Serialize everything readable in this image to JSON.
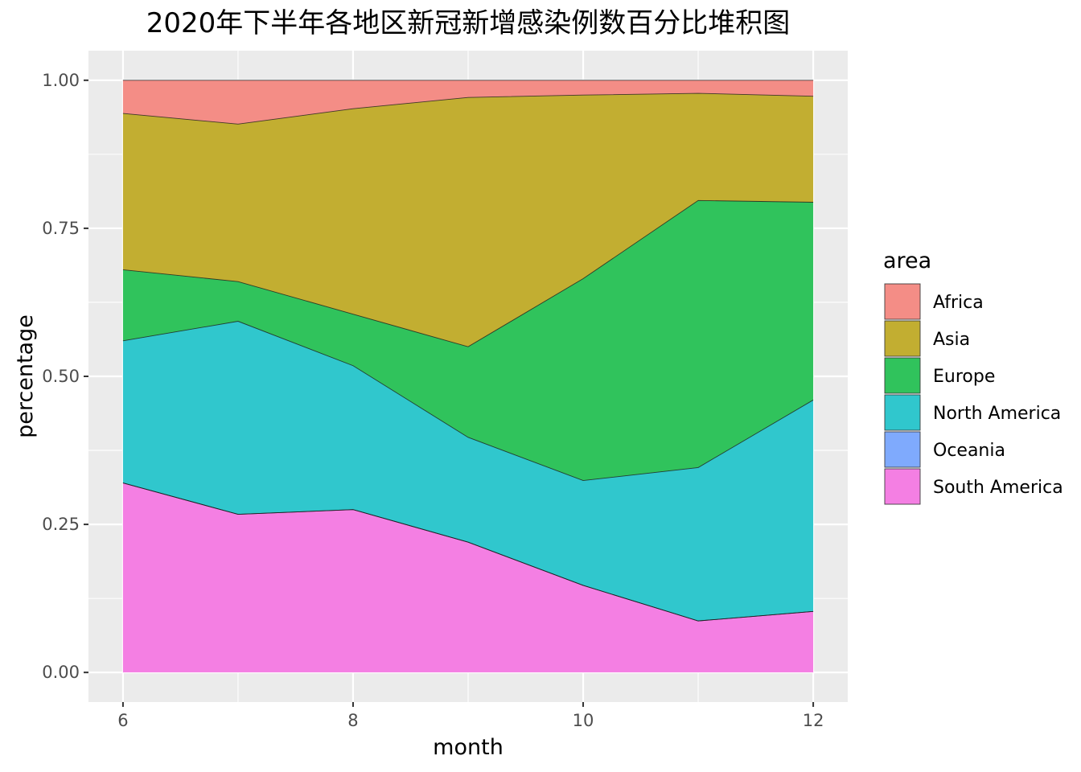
{
  "chart_data": {
    "type": "area",
    "stacked": true,
    "normalized": true,
    "title": "2020年下半年各地区新冠新增感染例数百分比堆积图",
    "xlabel": "month",
    "ylabel": "percentage",
    "xlim": [
      5.7,
      12.3
    ],
    "ylim": [
      -0.05,
      1.05
    ],
    "x_ticks": [
      6,
      8,
      10,
      12
    ],
    "x_tick_labels": [
      "6",
      "8",
      "10",
      "12"
    ],
    "y_ticks": [
      0,
      0.25,
      0.5,
      0.75,
      1.0
    ],
    "y_tick_labels": [
      "0.00",
      "0.25",
      "0.50",
      "0.75",
      "1.00"
    ],
    "grid": true,
    "legend_title": "area",
    "legend_position": "right",
    "x": [
      6,
      7,
      8,
      9,
      10,
      11,
      12
    ],
    "series": [
      {
        "name": "South America",
        "color": "#F47FE3",
        "values": [
          0.32,
          0.267,
          0.275,
          0.22,
          0.147,
          0.087,
          0.103
        ]
      },
      {
        "name": "Oceania",
        "color": "#7FAAFD",
        "values": [
          0.0,
          0.0,
          0.0,
          0.0,
          0.0,
          0.0,
          0.0
        ]
      },
      {
        "name": "North America",
        "color": "#30C7CD",
        "values": [
          0.24,
          0.326,
          0.243,
          0.177,
          0.177,
          0.259,
          0.357
        ]
      },
      {
        "name": "Europe",
        "color": "#30C35C",
        "values": [
          0.12,
          0.067,
          0.087,
          0.153,
          0.341,
          0.451,
          0.334
        ]
      },
      {
        "name": "Asia",
        "color": "#C2AE31",
        "values": [
          0.264,
          0.266,
          0.347,
          0.421,
          0.31,
          0.181,
          0.179
        ]
      },
      {
        "name": "Africa",
        "color": "#F48D86",
        "values": [
          0.056,
          0.074,
          0.048,
          0.029,
          0.025,
          0.022,
          0.027
        ]
      }
    ],
    "legend_order": [
      "Africa",
      "Asia",
      "Europe",
      "North America",
      "Oceania",
      "South America"
    ],
    "panel_background": "#EBEBEB",
    "grid_color": "#FFFFFF"
  }
}
